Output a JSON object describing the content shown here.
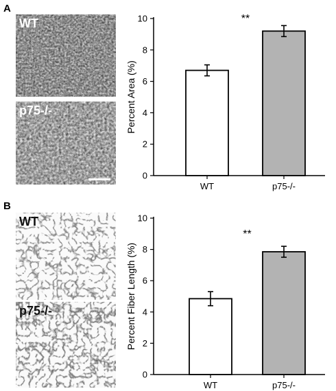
{
  "panels": [
    {
      "letter": "A",
      "images": [
        {
          "label": "WT",
          "style": "fluorescence"
        },
        {
          "label": "p75-/-",
          "style": "fluorescence",
          "scale_bar": true
        }
      ]
    },
    {
      "letter": "B",
      "images": [
        {
          "label": "WT",
          "style": "tracing"
        },
        {
          "label": "p75-/-",
          "style": "tracing"
        }
      ]
    }
  ],
  "chart_data": [
    {
      "type": "bar",
      "title": "",
      "xlabel": "",
      "ylabel": "Percent Area (%)",
      "categories": [
        "WT",
        "p75-/-"
      ],
      "values": [
        6.7,
        9.2
      ],
      "errors": [
        0.35,
        0.35
      ],
      "bar_colors": [
        "#ffffff",
        "#b3b3b3"
      ],
      "ylim": [
        0,
        10
      ],
      "yticks": [
        "0",
        "2",
        "4",
        "6",
        "8",
        "10"
      ],
      "significance": "**",
      "grid": false
    },
    {
      "type": "bar",
      "title": "",
      "xlabel": "",
      "ylabel": "Percent Fiber Length (%)",
      "categories": [
        "WT",
        "p75-/-"
      ],
      "values": [
        4.85,
        7.85
      ],
      "errors": [
        0.45,
        0.35
      ],
      "bar_colors": [
        "#ffffff",
        "#b3b3b3"
      ],
      "ylim": [
        0,
        10
      ],
      "yticks": [
        "0",
        "2",
        "4",
        "6",
        "8",
        "10"
      ],
      "significance": "**",
      "grid": false
    }
  ]
}
